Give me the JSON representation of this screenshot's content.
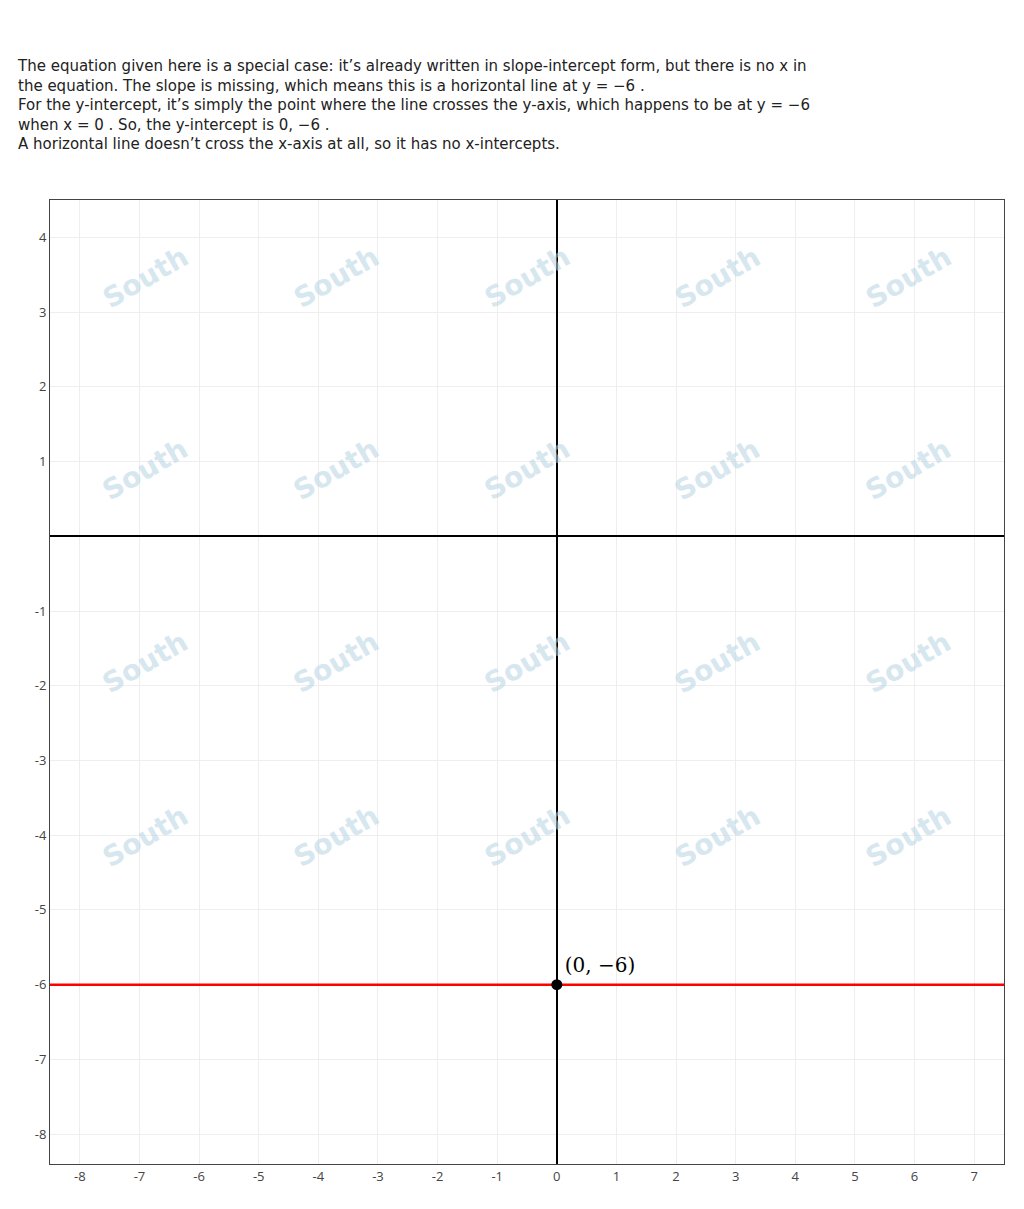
{
  "chart_data": {
    "type": "line",
    "annotations": [
      "The equation given here is a special case: it’s already written in slope-intercept form, but there is no x in",
      "the equation. The slope is missing, which means this is a horizontal line at y = −6 .",
      "For the y-intercept, it’s simply the point where the line crosses the y-axis, which happens to be at y = −6",
      "when x = 0 . So, the y-intercept is 0, −6 .",
      "A horizontal line doesn’t cross the x-axis at all, so it has no x-intercepts."
    ],
    "watermark": "South",
    "series": [
      {
        "type": "hline",
        "color": "#ff0000",
        "values": [
          -6
        ]
      },
      {
        "type": "scatter",
        "color": "#000000",
        "marker": "circle",
        "x": [
          0
        ],
        "values": [
          -6
        ],
        "data_labels": true,
        "value_labels": [
          "(0, −6)"
        ]
      }
    ],
    "xlim": [
      -8.5,
      7.5
    ],
    "ylim": [
      -8.4,
      4.5
    ],
    "xticks": [
      -8,
      -7,
      -6,
      -5,
      -4,
      -3,
      -2,
      -1,
      0,
      1,
      2,
      3,
      4,
      5,
      6,
      7
    ],
    "yticks": [
      -8,
      -7,
      -6,
      -5,
      -4,
      -3,
      -2,
      -1,
      1,
      2,
      3,
      4
    ],
    "grid": true
  }
}
